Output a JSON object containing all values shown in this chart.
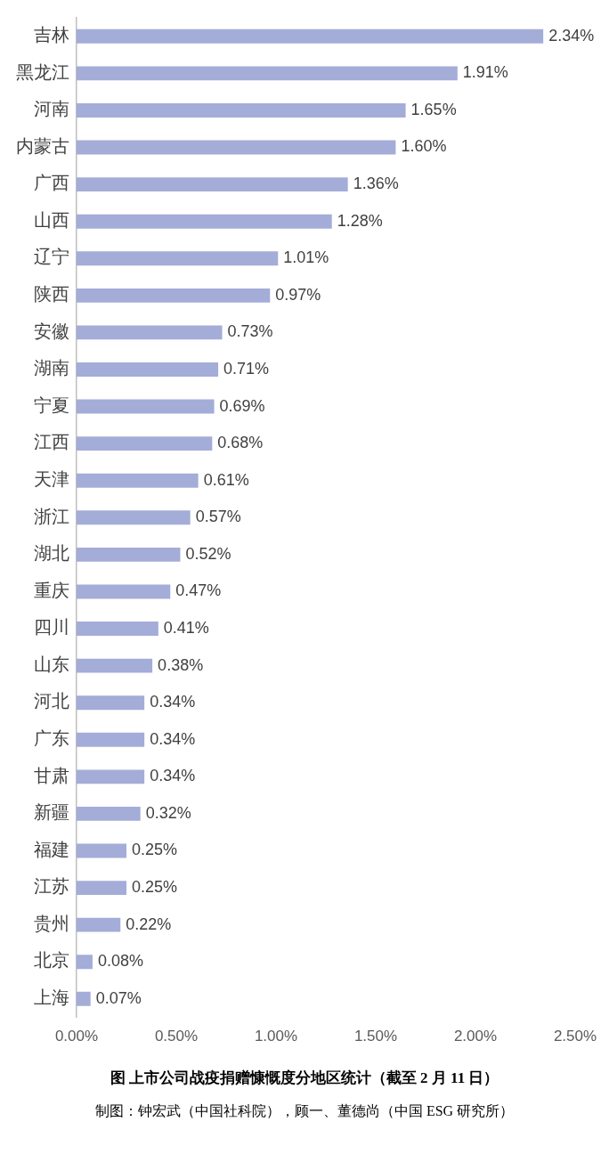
{
  "chart_data": {
    "type": "bar",
    "orientation": "horizontal",
    "title": "图  上市公司战疫捐赠慷慨度分地区统计（截至 2 月 11 日）",
    "annotations": [
      "制图：钟宏武（中国社科院），顾一、董德尚（中国 ESG 研究所）"
    ],
    "categories": [
      "吉林",
      "黑龙江",
      "河南",
      "内蒙古",
      "广西",
      "山西",
      "辽宁",
      "陕西",
      "安徽",
      "湖南",
      "宁夏",
      "江西",
      "天津",
      "浙江",
      "湖北",
      "重庆",
      "四川",
      "山东",
      "河北",
      "广东",
      "甘肃",
      "新疆",
      "福建",
      "江苏",
      "贵州",
      "北京",
      "上海"
    ],
    "values": [
      2.34,
      1.91,
      1.65,
      1.6,
      1.36,
      1.28,
      1.01,
      0.97,
      0.73,
      0.71,
      0.69,
      0.68,
      0.61,
      0.57,
      0.52,
      0.47,
      0.41,
      0.38,
      0.34,
      0.34,
      0.34,
      0.32,
      0.25,
      0.25,
      0.22,
      0.08,
      0.07
    ],
    "value_labels": [
      "2.34%",
      "1.91%",
      "1.65%",
      "1.60%",
      "1.36%",
      "1.28%",
      "1.01%",
      "0.97%",
      "0.73%",
      "0.71%",
      "0.69%",
      "0.68%",
      "0.61%",
      "0.57%",
      "0.52%",
      "0.47%",
      "0.41%",
      "0.38%",
      "0.34%",
      "0.34%",
      "0.34%",
      "0.32%",
      "0.25%",
      "0.25%",
      "0.22%",
      "0.08%",
      "0.07%"
    ],
    "color": "#a4acd8",
    "xlim": [
      0,
      2.5
    ],
    "xticks": [
      {
        "value": 0,
        "label": "0.00%"
      },
      {
        "value": 0.5,
        "label": "0.50%"
      },
      {
        "value": 1,
        "label": "1.00%"
      },
      {
        "value": 1.5,
        "label": "1.50%"
      },
      {
        "value": 2,
        "label": "2.00%"
      },
      {
        "value": 2.5,
        "label": "2.50%"
      }
    ],
    "grid": false,
    "legend": false
  }
}
